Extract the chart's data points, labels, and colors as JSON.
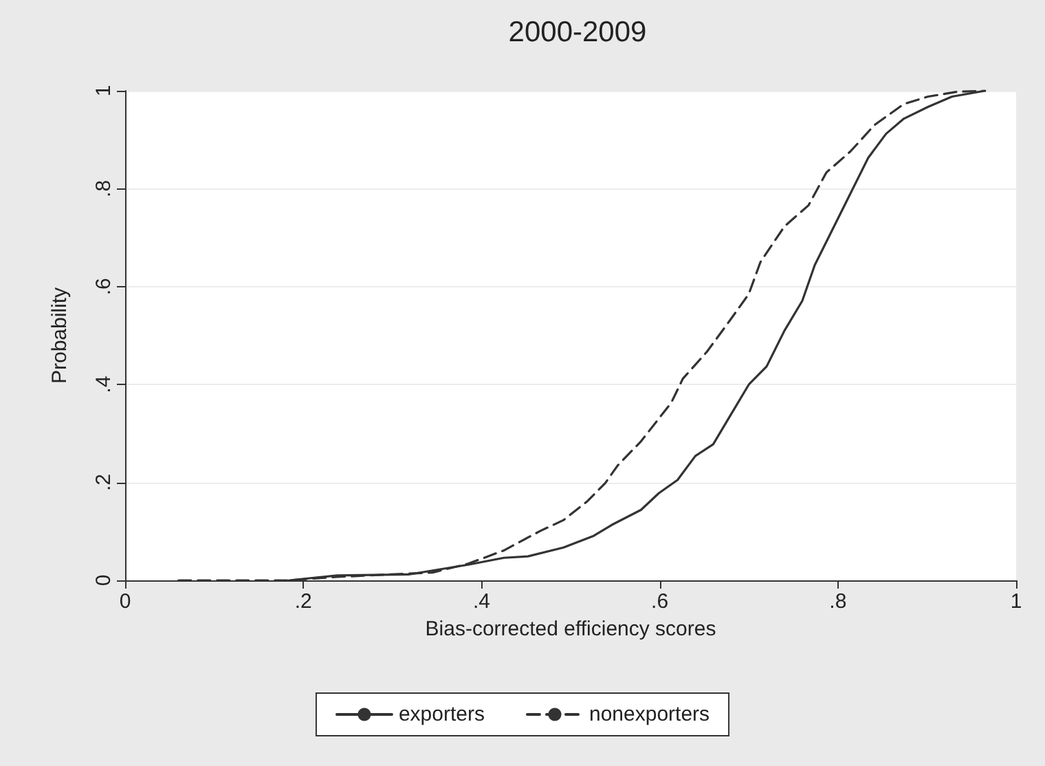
{
  "chart_data": {
    "type": "line",
    "title": "2000-2009",
    "xlabel": "Bias-corrected efficiency scores",
    "ylabel": "Probability",
    "xlim": [
      0,
      1
    ],
    "ylim": [
      0,
      1
    ],
    "xticks": [
      0,
      {
        "value": 0.2,
        "label": ".2"
      },
      {
        "value": 0.4,
        "label": ".4"
      },
      {
        "value": 0.6,
        "label": ".6"
      },
      {
        "value": 0.8,
        "label": ".8"
      },
      1
    ],
    "yticks": [
      0,
      {
        "value": 0.2,
        "label": ".2"
      },
      {
        "value": 0.4,
        "label": ".4"
      },
      {
        "value": 0.6,
        "label": ".6"
      },
      {
        "value": 0.8,
        "label": ".8"
      },
      1
    ],
    "grid": "y",
    "legend": "bottom",
    "marker": "none",
    "series": [
      {
        "name": "exporters",
        "color": "#333333",
        "line_style": "solid",
        "x": [
          0.184,
          0.238,
          0.318,
          0.385,
          0.425,
          0.452,
          0.492,
          0.526,
          0.546,
          0.579,
          0.599,
          0.62,
          0.64,
          0.66,
          0.68,
          0.7,
          0.72,
          0.74,
          0.76,
          0.774,
          0.794,
          0.814,
          0.834,
          0.854,
          0.874,
          0.901,
          0.928,
          0.965
        ],
        "values": [
          0,
          0.01,
          0.012,
          0.032,
          0.046,
          0.049,
          0.067,
          0.091,
          0.113,
          0.144,
          0.178,
          0.205,
          0.254,
          0.278,
          0.339,
          0.4,
          0.437,
          0.51,
          0.571,
          0.644,
          0.717,
          0.79,
          0.863,
          0.912,
          0.943,
          0.967,
          0.988,
          1
        ]
      },
      {
        "name": "nonexporters",
        "color": "#333333",
        "line_style": "dashed",
        "x": [
          0.06,
          0.184,
          0.238,
          0.345,
          0.385,
          0.425,
          0.466,
          0.492,
          0.519,
          0.539,
          0.553,
          0.579,
          0.613,
          0.626,
          0.653,
          0.68,
          0.7,
          0.713,
          0.74,
          0.767,
          0.787,
          0.814,
          0.841,
          0.874,
          0.901,
          0.934,
          0.965
        ],
        "values": [
          0,
          0,
          0.007,
          0.016,
          0.034,
          0.061,
          0.101,
          0.123,
          0.162,
          0.199,
          0.235,
          0.284,
          0.363,
          0.412,
          0.467,
          0.534,
          0.585,
          0.65,
          0.723,
          0.766,
          0.833,
          0.876,
          0.93,
          0.973,
          0.988,
          0.998,
          1
        ]
      }
    ]
  }
}
